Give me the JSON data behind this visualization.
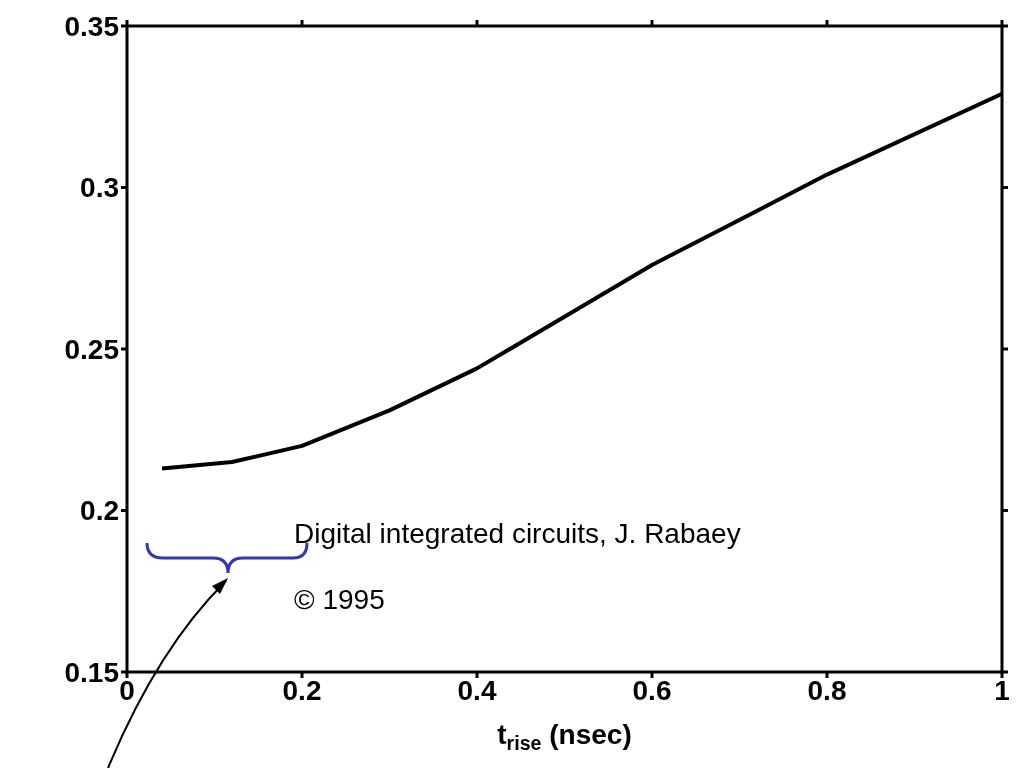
{
  "chart_data": {
    "type": "line",
    "xlabel": "t$_{rise}$ (nsec)",
    "x": [
      0.04,
      0.12,
      0.2,
      0.3,
      0.4,
      0.5,
      0.6,
      0.8,
      1.0
    ],
    "series": [
      {
        "color": "#000000",
        "values": [
          0.213,
          0.215,
          0.22,
          0.231,
          0.244,
          0.26,
          0.276,
          0.304,
          0.329
        ]
      }
    ],
    "xlim": [
      0,
      1
    ],
    "xticks": [
      0,
      0.2,
      0.4,
      0.6,
      0.8,
      1
    ],
    "ylim": [
      0.15,
      0.35
    ],
    "yticks": [
      0.15,
      0.2,
      0.25,
      0.3,
      0.35
    ],
    "grid": false,
    "annotations": [
      "Digital integrated circuits, J. Rabaey",
      "© 1995"
    ]
  }
}
